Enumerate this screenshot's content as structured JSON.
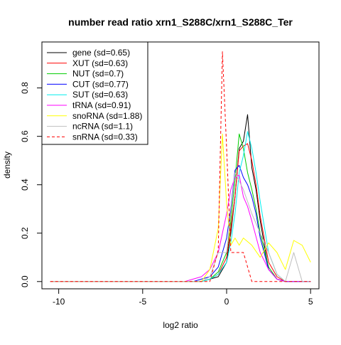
{
  "chart_data": {
    "type": "line",
    "title": "number read ratio xrn1_S288C/xrn1_S288C_Ter",
    "xlabel": "log2 ratio",
    "ylabel": "density",
    "xlim": [
      -11,
      5.5
    ],
    "ylim": [
      -0.03,
      0.99
    ],
    "xticks": [
      -10,
      -5,
      0,
      5
    ],
    "yticks": [
      0.0,
      0.2,
      0.4,
      0.6,
      0.8
    ],
    "ytick_labels": [
      "0.0",
      "0.2",
      "0.4",
      "0.6",
      "0.8"
    ],
    "grid": false,
    "legend_position": "top-left",
    "series": [
      {
        "name": "gene (sd=0.65)",
        "color": "#000000",
        "dash": false,
        "x": [
          -10.5,
          -1.5,
          -1.0,
          -0.5,
          0.0,
          0.25,
          0.5,
          0.75,
          1.0,
          1.25,
          1.5,
          1.75,
          2.0,
          2.5,
          3.0,
          3.5,
          5.0
        ],
        "y": [
          0.0,
          0.0,
          0.01,
          0.02,
          0.08,
          0.2,
          0.35,
          0.55,
          0.58,
          0.69,
          0.47,
          0.38,
          0.25,
          0.05,
          0.01,
          0.0,
          0.0
        ]
      },
      {
        "name": "XUT (sd=0.63)",
        "color": "#ff0000",
        "dash": false,
        "x": [
          -10.5,
          -1.5,
          -1.0,
          -0.5,
          0.0,
          0.25,
          0.5,
          0.75,
          1.0,
          1.25,
          1.5,
          1.75,
          2.0,
          2.5,
          3.0,
          3.5,
          5.0
        ],
        "y": [
          0.0,
          0.0,
          0.01,
          0.03,
          0.1,
          0.22,
          0.35,
          0.54,
          0.56,
          0.57,
          0.5,
          0.4,
          0.27,
          0.08,
          0.02,
          0.0,
          0.0
        ]
      },
      {
        "name": "NUT (sd=0.7)",
        "color": "#00cd00",
        "dash": false,
        "x": [
          -10.5,
          -1.5,
          -1.0,
          -0.5,
          0.0,
          0.25,
          0.5,
          0.75,
          1.0,
          1.25,
          1.5,
          1.75,
          2.0,
          2.5,
          3.0,
          3.5,
          5.0
        ],
        "y": [
          0.0,
          0.0,
          0.01,
          0.04,
          0.12,
          0.25,
          0.42,
          0.61,
          0.55,
          0.45,
          0.38,
          0.3,
          0.2,
          0.06,
          0.01,
          0.0,
          0.0
        ]
      },
      {
        "name": "CUT (sd=0.77)",
        "color": "#0000ff",
        "dash": false,
        "x": [
          -10.5,
          -2.0,
          -1.5,
          -1.0,
          -0.5,
          0.0,
          0.25,
          0.5,
          0.75,
          1.0,
          1.25,
          1.5,
          1.75,
          2.0,
          2.5,
          3.0,
          3.5,
          5.0
        ],
        "y": [
          0.0,
          0.0,
          0.01,
          0.02,
          0.06,
          0.18,
          0.3,
          0.46,
          0.48,
          0.43,
          0.4,
          0.35,
          0.28,
          0.18,
          0.05,
          0.01,
          0.0,
          0.0
        ]
      },
      {
        "name": "SUT (sd=0.63)",
        "color": "#00eeee",
        "dash": false,
        "x": [
          -10.5,
          -1.5,
          -1.0,
          -0.5,
          0.0,
          0.25,
          0.5,
          0.75,
          1.0,
          1.25,
          1.5,
          1.75,
          2.0,
          2.5,
          3.0,
          3.5,
          5.0
        ],
        "y": [
          0.0,
          0.0,
          0.01,
          0.03,
          0.08,
          0.16,
          0.28,
          0.45,
          0.52,
          0.62,
          0.55,
          0.45,
          0.33,
          0.12,
          0.03,
          0.0,
          0.0
        ]
      },
      {
        "name": "tRNA (sd=0.91)",
        "color": "#ff00ff",
        "dash": false,
        "x": [
          -10.5,
          -2.5,
          -2.0,
          -1.5,
          -1.0,
          -0.5,
          0.0,
          0.25,
          0.5,
          0.75,
          1.0,
          1.25,
          1.5,
          2.0,
          2.5,
          3.0,
          3.5,
          5.0
        ],
        "y": [
          0.0,
          0.0,
          0.01,
          0.02,
          0.05,
          0.12,
          0.28,
          0.38,
          0.43,
          0.44,
          0.35,
          0.31,
          0.25,
          0.12,
          0.05,
          0.01,
          0.0,
          0.0
        ]
      },
      {
        "name": "snoRNA (sd=1.88)",
        "color": "#ffff00",
        "dash": false,
        "x": [
          -10.5,
          -1.5,
          -1.0,
          -0.5,
          -0.25,
          0.0,
          0.25,
          0.5,
          0.75,
          1.0,
          1.5,
          2.0,
          2.5,
          3.0,
          3.5,
          4.0,
          4.5,
          5.0
        ],
        "y": [
          0.0,
          0.0,
          0.05,
          0.22,
          0.61,
          0.32,
          0.15,
          0.18,
          0.15,
          0.18,
          0.15,
          0.1,
          0.16,
          0.12,
          0.05,
          0.17,
          0.15,
          0.08
        ]
      },
      {
        "name": "ncRNA (sd=1.1)",
        "color": "#bebebe",
        "dash": false,
        "x": [
          -10.5,
          -1.5,
          -1.0,
          -0.5,
          0.0,
          0.5,
          1.0,
          1.5,
          2.0,
          2.5,
          3.0,
          3.5,
          4.0,
          4.5,
          5.0
        ],
        "y": [
          0.0,
          0.0,
          0.02,
          0.12,
          0.12,
          0.45,
          0.38,
          0.28,
          0.2,
          0.12,
          0.03,
          0.0,
          0.12,
          0.0,
          0.0
        ]
      },
      {
        "name": "snRNA (sd=0.33)",
        "color": "#ff0000",
        "dash": true,
        "x": [
          -10.5,
          -1.0,
          -0.5,
          -0.25,
          0.0,
          0.25,
          0.5,
          1.0,
          1.5,
          2.0,
          5.0
        ],
        "y": [
          0.0,
          0.0,
          0.13,
          0.95,
          0.55,
          0.12,
          0.12,
          0.12,
          0.0,
          0.0,
          0.0
        ]
      }
    ]
  }
}
